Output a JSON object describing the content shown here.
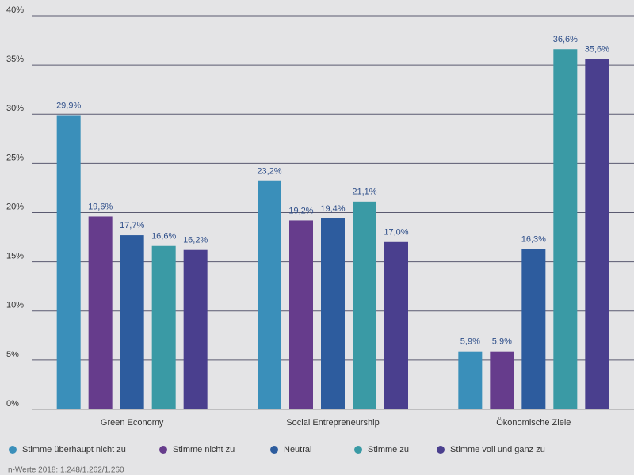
{
  "chart_data": {
    "type": "bar",
    "categories": [
      "Green Economy",
      "Social Entrepreneurship",
      "Ökonomische Ziele"
    ],
    "series": [
      {
        "name": "Stimme überhaupt nicht zu",
        "color": "#3a8fba",
        "values": [
          29.9,
          23.2,
          5.9
        ],
        "value_labels": [
          "29,9%",
          "23,2%",
          "5,9%"
        ]
      },
      {
        "name": "Stimme nicht zu",
        "color": "#663c8c",
        "values": [
          19.6,
          19.2,
          5.9
        ],
        "value_labels": [
          "19,6%",
          "19,2%",
          "5,9%"
        ]
      },
      {
        "name": "Neutral",
        "color": "#2d5c9e",
        "values": [
          17.7,
          19.4,
          16.3
        ],
        "value_labels": [
          "17,7%",
          "19,4%",
          "16,3%"
        ]
      },
      {
        "name": "Stimme zu",
        "color": "#3a9aa5",
        "values": [
          16.6,
          21.1,
          36.6
        ],
        "value_labels": [
          "16,6%",
          "21,1%",
          "36,6%"
        ]
      },
      {
        "name": "Stimme voll und ganz zu",
        "color": "#4a3f8e",
        "values": [
          16.2,
          17.0,
          35.6
        ],
        "value_labels": [
          "16,2%",
          "17,0%",
          "35,6%"
        ]
      }
    ],
    "ylim": [
      0,
      40
    ],
    "yticks": [
      {
        "value": 0,
        "label": "0%"
      },
      {
        "value": 5,
        "label": "5%"
      },
      {
        "value": 10,
        "label": "10%"
      },
      {
        "value": 15,
        "label": "15%"
      },
      {
        "value": 20,
        "label": "20%"
      },
      {
        "value": 25,
        "label": "25%"
      },
      {
        "value": 30,
        "label": "30%"
      },
      {
        "value": 35,
        "label": "35%"
      },
      {
        "value": 40,
        "label": "40%"
      }
    ],
    "grid": true,
    "legend": "bottom",
    "note": "n-Werte 2018: 1.248/1.262/1.260"
  }
}
